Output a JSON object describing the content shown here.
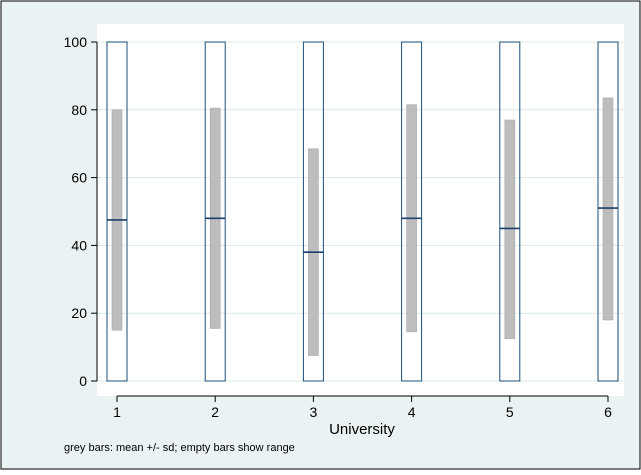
{
  "chart_data": {
    "type": "bar",
    "title": "",
    "xlabel": "University",
    "ylabel": "",
    "note": "grey bars: mean +/- sd; empty bars show range",
    "ylim": [
      0,
      100
    ],
    "yticks": [
      0,
      20,
      40,
      60,
      80,
      100
    ],
    "grid": "horizontal",
    "categories": [
      "1",
      "2",
      "3",
      "4",
      "5",
      "6"
    ],
    "series": [
      {
        "name": "mean",
        "values": [
          47.5,
          48,
          38,
          48,
          45,
          51
        ]
      },
      {
        "name": "mean - sd",
        "values": [
          15,
          15.5,
          7.5,
          14.5,
          12.5,
          18
        ]
      },
      {
        "name": "mean + sd",
        "values": [
          80,
          80.5,
          68.5,
          81.5,
          77,
          83.5
        ]
      },
      {
        "name": "min",
        "values": [
          0,
          0,
          0,
          0,
          0,
          0
        ]
      },
      {
        "name": "max",
        "values": [
          100,
          100,
          100,
          100,
          100,
          100
        ]
      }
    ]
  },
  "colors": {
    "outer_background": "#eaf2f3",
    "plot_background": "#ffffff",
    "grid": "#d9e8ea",
    "range_outline": "#1a4f7a",
    "sd_bar_fill": "#bdbdbd",
    "mean_line": "#1a3f6a",
    "axis": "#000000"
  }
}
